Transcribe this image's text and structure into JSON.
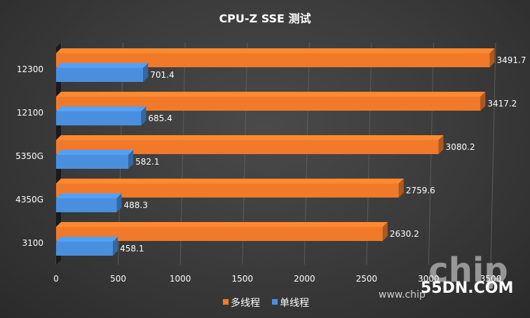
{
  "chart_data": {
    "type": "bar",
    "orientation": "horizontal",
    "title": "CPU-Z SSE 测试",
    "categories": [
      "12300",
      "12100",
      "5350G",
      "4350G",
      "3100"
    ],
    "series": [
      {
        "name": "多线程",
        "color": "#f07a2a",
        "values": [
          3491.7,
          3417.2,
          3080.2,
          2759.6,
          2630.2
        ]
      },
      {
        "name": "单线程",
        "color": "#4a8fde",
        "values": [
          701.4,
          685.4,
          582.1,
          488.3,
          458.1
        ]
      }
    ],
    "value_labels": {
      "多线程": [
        "3491.7",
        "3417.2",
        "3080.2",
        "2759.6",
        "2630.2"
      ],
      "单线程": [
        "701.4",
        "685.4",
        "582.1",
        "488.3",
        "458.1"
      ]
    },
    "xlim": [
      0,
      3500
    ],
    "xticks": [
      "0",
      "500",
      "1000",
      "1500",
      "2000",
      "2500",
      "3000",
      "3500"
    ],
    "grid": true,
    "legend_position": "bottom"
  },
  "watermark": {
    "logo": "chip",
    "site": "55DN.COM",
    "url": "www.chip"
  }
}
